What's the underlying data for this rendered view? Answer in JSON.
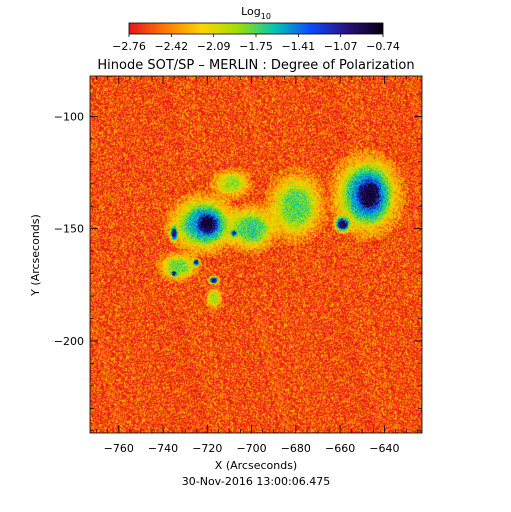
{
  "chart_data": {
    "type": "heatmap",
    "title": "Hinode SOT/SP – MERLIN : Degree of Polarization",
    "xlabel": "X (Arcseconds)",
    "ylabel": "Y (Arcseconds)",
    "timestamp": "30-Nov-2016 13:00:06.475",
    "xlim": [
      -773,
      -623
    ],
    "ylim": [
      -241,
      -82
    ],
    "x_ticks": [
      -760,
      -740,
      -720,
      -700,
      -680,
      -660,
      -640
    ],
    "y_ticks": [
      -100,
      -150,
      -200
    ],
    "x_tick_labels": [
      "−760",
      "−740",
      "−720",
      "−700",
      "−680",
      "−660",
      "−640"
    ],
    "y_tick_labels": [
      "−100",
      "−150",
      "−200"
    ],
    "colorbar": {
      "label_base": "Log",
      "label_sub": "10",
      "range": [
        -2.76,
        -0.74
      ],
      "tick_labels": [
        "−2.76",
        "−2.42",
        "−2.09",
        "−1.75",
        "−1.41",
        "−1.07",
        "−0.74"
      ],
      "colors": [
        "#e8141a",
        "#ff7a00",
        "#ffd400",
        "#9ee000",
        "#00c8b0",
        "#0a4cff",
        "#2a1080",
        "#05000f"
      ]
    },
    "features": [
      {
        "cx": -647,
        "cy": -135,
        "rx": 7,
        "ry": 9,
        "value": -0.8
      },
      {
        "cx": -720,
        "cy": -148,
        "rx": 6,
        "ry": 6,
        "value": -0.82
      },
      {
        "cx": -659,
        "cy": -148,
        "rx": 3,
        "ry": 3,
        "value": -0.9
      },
      {
        "cx": -735,
        "cy": -152,
        "rx": 1.5,
        "ry": 3,
        "value": -0.95
      },
      {
        "cx": -725,
        "cy": -165,
        "rx": 1.5,
        "ry": 1.5,
        "value": -1.0
      },
      {
        "cx": -717,
        "cy": -173,
        "rx": 2,
        "ry": 1.5,
        "value": -1.0
      },
      {
        "cx": -735,
        "cy": -170,
        "rx": 1.5,
        "ry": 1.2,
        "value": -1.05
      },
      {
        "cx": -708,
        "cy": -152,
        "rx": 1.5,
        "ry": 1.5,
        "value": -1.05
      },
      {
        "cx": -648,
        "cy": -135,
        "rx": 12,
        "ry": 14,
        "value": -1.5
      },
      {
        "cx": -722,
        "cy": -148,
        "rx": 12,
        "ry": 10,
        "value": -1.55
      },
      {
        "cx": -700,
        "cy": -150,
        "rx": 9,
        "ry": 8,
        "value": -1.7
      },
      {
        "cx": -680,
        "cy": -140,
        "rx": 10,
        "ry": 12,
        "value": -1.75
      },
      {
        "cx": -733,
        "cy": -167,
        "rx": 7,
        "ry": 5,
        "value": -1.8
      },
      {
        "cx": -709,
        "cy": -130,
        "rx": 7,
        "ry": 5,
        "value": -1.9
      },
      {
        "cx": -717,
        "cy": -181,
        "rx": 3,
        "ry": 4,
        "value": -1.95
      }
    ]
  }
}
